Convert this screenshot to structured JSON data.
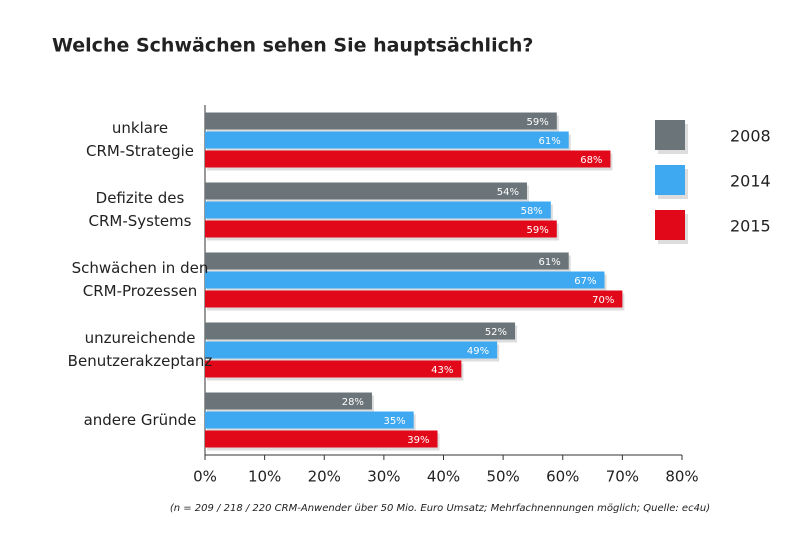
{
  "chart_data": {
    "type": "hbar",
    "title": "Welche Schwächen sehen Sie hauptsächlich?",
    "categories": [
      "unklare\nCRM-Strategie",
      "Defizite des\nCRM-Systems",
      "Schwächen in den\nCRM-Prozessen",
      "unzureichende\nBenutzerakzeptanz",
      "andere Gründe"
    ],
    "series": [
      {
        "name": "2008",
        "color": "#6b7579",
        "values": [
          59,
          54,
          61,
          52,
          28
        ],
        "value_labels": [
          "59%",
          "54%",
          "61%",
          "52%",
          "28%"
        ]
      },
      {
        "name": "2014",
        "color": "#3ea8f0",
        "values": [
          61,
          58,
          67,
          49,
          35
        ],
        "value_labels": [
          "61%",
          "58%",
          "67%",
          "49%",
          "35%"
        ]
      },
      {
        "name": "2015",
        "color": "#e1081a",
        "values": [
          68,
          59,
          70,
          43,
          39
        ],
        "value_labels": [
          "68%",
          "59%",
          "70%",
          "43%",
          "39%"
        ]
      }
    ],
    "xlim": [
      0,
      80
    ],
    "xticks": [
      {
        "value": 0,
        "label": "0%"
      },
      {
        "value": 10,
        "label": "10%"
      },
      {
        "value": 20,
        "label": "20%"
      },
      {
        "value": 30,
        "label": "30%"
      },
      {
        "value": 40,
        "label": "40%"
      },
      {
        "value": 50,
        "label": "50%"
      },
      {
        "value": 60,
        "label": "60%"
      },
      {
        "value": 70,
        "label": "70%"
      },
      {
        "value": 80,
        "label": "80%"
      }
    ],
    "grid": false,
    "note": "(n = 209 / 218 / 220 CRM-Anwender über 50 Mio. Euro Umsatz; Mehrfachnennungen möglich; Quelle: ec4u)"
  }
}
